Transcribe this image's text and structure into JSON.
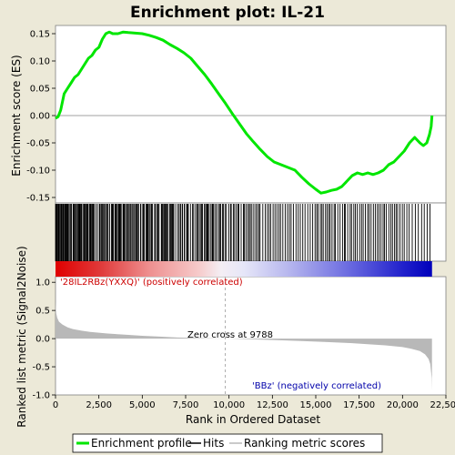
{
  "chart_data": {
    "type": "line",
    "title": "Enrichment plot: IL-21",
    "xlabel": "Rank in Ordered Dataset",
    "xlim": [
      0,
      22500
    ],
    "x_ticks": [
      "0",
      "2,500",
      "5,000",
      "7,500",
      "10,000",
      "12,500",
      "15,000",
      "17,500",
      "20,000",
      "22,500"
    ],
    "x_tick_values": [
      0,
      2500,
      5000,
      7500,
      10000,
      12500,
      15000,
      17500,
      20000,
      22500
    ],
    "n_genes": 21700,
    "enrichment_panel": {
      "ylabel": "Enrichment score (ES)",
      "ylim": [
        -0.16,
        0.165
      ],
      "y_ticks": [
        "0.15",
        "0.10",
        "0.05",
        "0.00",
        "-0.05",
        "-0.10",
        "-0.15"
      ],
      "y_tick_values": [
        0.15,
        0.1,
        0.05,
        0.0,
        -0.05,
        -0.1,
        -0.15
      ],
      "color": "#00e600",
      "series": [
        {
          "x": [
            0,
            150,
            300,
            500,
            700,
            900,
            1100,
            1300,
            1500,
            1700,
            1900,
            2100,
            2300,
            2500,
            2700,
            2900,
            3100,
            3300,
            3600,
            3900,
            4200,
            4600,
            5000,
            5400,
            5800,
            6200,
            6600,
            7000,
            7400,
            7800,
            8200,
            8600,
            9000,
            9400,
            9800,
            10200,
            10600,
            11000,
            11400,
            11800,
            12200,
            12600,
            13000,
            13400,
            13800,
            14200,
            14600,
            15000,
            15300,
            15600,
            15900,
            16200,
            16500,
            16800,
            17100,
            17400,
            17700,
            18000,
            18300,
            18600,
            18900,
            19200,
            19500,
            19800,
            20100,
            20400,
            20700,
            21000,
            21200,
            21400,
            21550,
            21650,
            21700
          ],
          "y": [
            -0.005,
            -0.002,
            0.01,
            0.04,
            0.05,
            0.06,
            0.07,
            0.075,
            0.085,
            0.095,
            0.105,
            0.11,
            0.12,
            0.125,
            0.14,
            0.15,
            0.153,
            0.15,
            0.15,
            0.153,
            0.152,
            0.151,
            0.15,
            0.147,
            0.143,
            0.138,
            0.13,
            0.123,
            0.115,
            0.105,
            0.09,
            0.075,
            0.058,
            0.04,
            0.022,
            0.003,
            -0.015,
            -0.033,
            -0.048,
            -0.062,
            -0.075,
            -0.085,
            -0.09,
            -0.095,
            -0.1,
            -0.113,
            -0.125,
            -0.135,
            -0.142,
            -0.14,
            -0.137,
            -0.135,
            -0.13,
            -0.12,
            -0.11,
            -0.105,
            -0.108,
            -0.105,
            -0.108,
            -0.105,
            -0.1,
            -0.09,
            -0.085,
            -0.075,
            -0.065,
            -0.05,
            -0.04,
            -0.05,
            -0.055,
            -0.05,
            -0.035,
            -0.02,
            0.0
          ]
        }
      ]
    },
    "hits_panel": {
      "hit_ranks": [
        10,
        18,
        32,
        50,
        80,
        120,
        170,
        200,
        250,
        280,
        330,
        350,
        380,
        430,
        460,
        520,
        560,
        590,
        610,
        650,
        690,
        720,
        750,
        830,
        880,
        920,
        1010,
        1040,
        1070,
        1120,
        1190,
        1250,
        1300,
        1330,
        1370,
        1400,
        1450,
        1490,
        1520,
        1610,
        1650,
        1700,
        1740,
        1800,
        1830,
        1850,
        1870,
        1950,
        2000,
        2040,
        2100,
        2150,
        2190,
        2220,
        2320,
        2420,
        2530,
        2560,
        2630,
        2680,
        2730,
        2790,
        2850,
        2930,
        2980,
        3030,
        3120,
        3220,
        3270,
        3300,
        3340,
        3430,
        3460,
        3490,
        3550,
        3620,
        3660,
        3690,
        3710,
        3750,
        3820,
        3900,
        3920,
        3960,
        4000,
        4090,
        4140,
        4200,
        4260,
        4330,
        4400,
        4420,
        4500,
        4560,
        4630,
        4650,
        4710,
        4760,
        4790,
        4900,
        4920,
        5030,
        5070,
        5120,
        5220,
        5270,
        5320,
        5350,
        5420,
        5500,
        5540,
        5590,
        5710,
        5740,
        5820,
        5890,
        5910,
        5970,
        6100,
        6130,
        6180,
        6240,
        6260,
        6320,
        6380,
        6420,
        6490,
        6590,
        6630,
        6680,
        6740,
        6770,
        6790,
        6880,
        7020,
        7100,
        7190,
        7210,
        7300,
        7320,
        7420,
        7440,
        7560,
        7590,
        7610,
        7650,
        7780,
        7900,
        7960,
        8070,
        8160,
        8220,
        8290,
        8380,
        8430,
        8470,
        8580,
        8650,
        8710,
        8760,
        8790,
        8860,
        8960,
        9030,
        9070,
        9120,
        9220,
        9300,
        9410,
        9480,
        9520,
        9620,
        9670,
        9770,
        9850,
        9990,
        10090,
        10130,
        10250,
        10320,
        10420,
        10510,
        10570,
        10700,
        10830,
        10880,
        10970,
        11070,
        11160,
        11230,
        11320,
        11430,
        11540,
        11630,
        11720,
        11790,
        11950,
        12090,
        12210,
        12310,
        12400,
        12540,
        12650,
        12760,
        12880,
        12970,
        13100,
        13240,
        13370,
        13480,
        13580,
        13710,
        13860,
        13990,
        14110,
        14250,
        14380,
        14540,
        14680,
        14820,
        14960,
        15050,
        15130,
        15260,
        15350,
        15430,
        15560,
        15650,
        15750,
        15830,
        15940,
        16060,
        16130,
        16270,
        16400,
        16540,
        16650,
        16700,
        16840,
        16980,
        17060,
        17190,
        17280,
        17390,
        17530,
        17640,
        17730,
        17860,
        17990,
        18080,
        18190,
        18320,
        18430,
        18550,
        18650,
        18760,
        18880,
        18960,
        19060,
        19210,
        19330,
        19420,
        19540,
        19630,
        19720,
        19850,
        19990,
        20100,
        20250,
        20380,
        20560,
        20740,
        20910,
        21100,
        21250,
        21420,
        21580
      ]
    },
    "ranked_panel": {
      "ylabel": "Ranked list metric (Signal2Noise)",
      "ylim": [
        -1.0,
        1.1
      ],
      "y_ticks": [
        "1.0",
        "0.5",
        "0.0",
        "-0.5",
        "-1.0"
      ],
      "y_tick_values": [
        1.0,
        0.5,
        0.0,
        -0.5,
        -1.0
      ],
      "fill_color": "#b8b8b8",
      "series": [
        {
          "x": [
            0,
            40,
            100,
            200,
            400,
            700,
            1000,
            1500,
            2000,
            3000,
            4000,
            5000,
            6000,
            7000,
            8000,
            9000,
            9788,
            11000,
            12500,
            14000,
            15500,
            17000,
            18000,
            19000,
            20000,
            20500,
            21000,
            21300,
            21500,
            21600,
            21680,
            21700
          ],
          "y": [
            0.65,
            0.45,
            0.37,
            0.3,
            0.25,
            0.2,
            0.17,
            0.14,
            0.12,
            0.09,
            0.07,
            0.05,
            0.035,
            0.02,
            0.012,
            0.005,
            0.0,
            -0.01,
            -0.025,
            -0.04,
            -0.06,
            -0.08,
            -0.1,
            -0.12,
            -0.15,
            -0.18,
            -0.22,
            -0.28,
            -0.36,
            -0.45,
            -0.7,
            -0.92
          ]
        }
      ],
      "zero_cross_rank": 9788,
      "zero_cross_label": "Zero cross at 9788",
      "pos_label": "'28IL2RBz(YXXQ)' (positively correlated)",
      "neg_label": "'BBz' (negatively correlated)",
      "pos_label_color": "#cc0000",
      "neg_label_color": "#0000aa"
    },
    "legend": {
      "items": [
        {
          "label": "Enrichment profile",
          "color": "#00e600",
          "kind": "line"
        },
        {
          "label": "Hits",
          "color": "#000000",
          "kind": "line"
        },
        {
          "label": "Ranking metric scores",
          "color": "#b8b8b8",
          "kind": "line"
        }
      ]
    }
  }
}
